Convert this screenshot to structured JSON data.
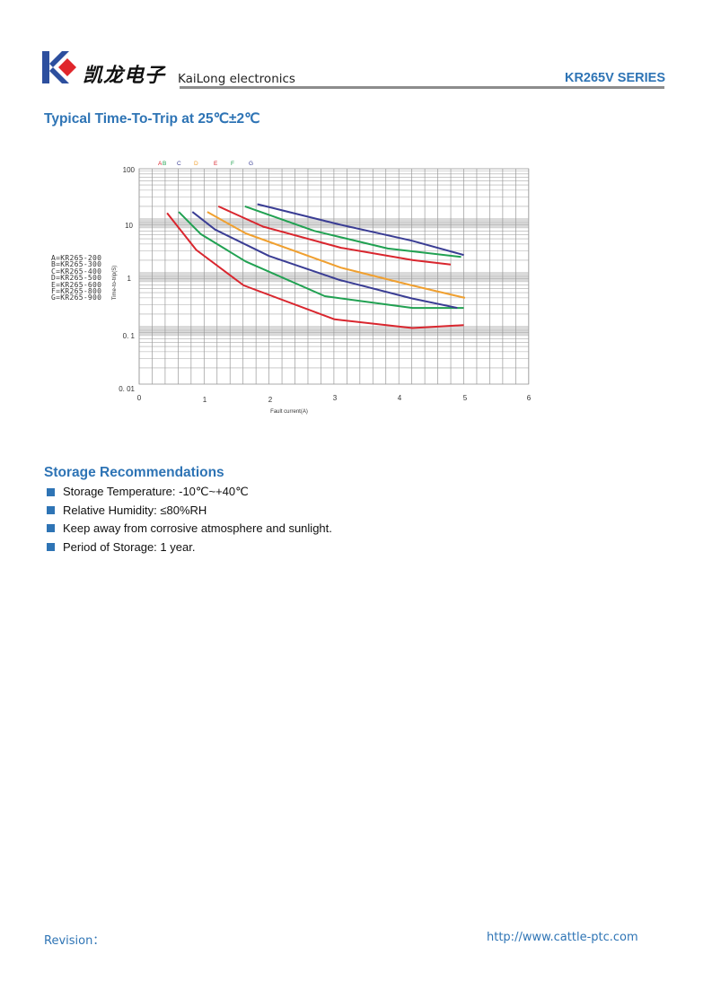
{
  "header": {
    "logo_text_cn": "凯龙电子",
    "brand": "KaiLong electronics",
    "series": "KR265V SERIES"
  },
  "section1": {
    "title": "Typical Time-To-Trip at 25℃±2℃"
  },
  "chart_data": {
    "type": "line",
    "title": "",
    "xlabel": "Fault current(A)",
    "ylabel": "Time-to-trip(S)",
    "xlim": [
      0,
      6
    ],
    "ylim": [
      0.01,
      100
    ],
    "yscale": "log",
    "grid": true,
    "x_ticks": [
      "0",
      "1",
      "2",
      "3",
      "4",
      "5",
      "6"
    ],
    "y_ticks": [
      "100",
      "10",
      "1",
      "0. 1",
      "0. 01"
    ],
    "legend_placement": "left",
    "legend": [
      "A=KR265-200",
      "B=KR265-300",
      "C=KR265-400",
      "D=KR265-500",
      "E=KR265-600",
      "F=KR265-800",
      "G=KR265-900"
    ],
    "series": [
      {
        "name": "A",
        "color": "#d9262e",
        "x": [
          0.43,
          0.88,
          1.61,
          3.01,
          4.21,
          5.0
        ],
        "y": [
          15,
          3.1,
          0.68,
          0.16,
          0.11,
          0.125
        ]
      },
      {
        "name": "B",
        "color": "#21a152",
        "x": [
          0.61,
          0.95,
          1.64,
          2.86,
          4.21,
          5.0
        ],
        "y": [
          15.8,
          6.1,
          1.9,
          0.43,
          0.26,
          0.26
        ]
      },
      {
        "name": "C",
        "color": "#3a3d94",
        "x": [
          0.82,
          1.17,
          2.0,
          3.07,
          4.2,
          4.9
        ],
        "y": [
          15.8,
          7.4,
          2.4,
          0.87,
          0.39,
          0.26
        ]
      },
      {
        "name": "D",
        "color": "#f0a030",
        "x": [
          1.05,
          1.64,
          3.11,
          4.2,
          5.02
        ],
        "y": [
          15.8,
          6.3,
          1.45,
          0.68,
          0.4
        ]
      },
      {
        "name": "E",
        "color": "#d9262e",
        "x": [
          1.22,
          1.91,
          3.11,
          4.22,
          4.8
        ],
        "y": [
          20,
          8.4,
          3.4,
          2.0,
          1.66
        ]
      },
      {
        "name": "F",
        "color": "#21a152",
        "x": [
          1.63,
          2.7,
          3.83,
          4.96
        ],
        "y": [
          20,
          7.0,
          3.3,
          2.3
        ]
      },
      {
        "name": "G",
        "color": "#3a3d94",
        "x": [
          1.82,
          3.07,
          4.2,
          5.0
        ],
        "y": [
          22,
          9.3,
          4.6,
          2.5
        ]
      }
    ],
    "series_letters": [
      {
        "text": "A",
        "color": "#d9262e"
      },
      {
        "text": "B",
        "color": "#21a152"
      },
      {
        "text": "C",
        "color": "#3a3d94"
      },
      {
        "text": "D",
        "color": "#f0a030"
      },
      {
        "text": "E",
        "color": "#d9262e"
      },
      {
        "text": "F",
        "color": "#21a152"
      },
      {
        "text": "G",
        "color": "#3a3d94"
      }
    ]
  },
  "section2": {
    "title": "Storage Recommendations",
    "items": [
      "Storage Temperature: -10℃~+40℃",
      "Relative Humidity: ≤80%RH",
      "Keep away from corrosive atmosphere and sunlight.",
      "Period of Storage: 1 year."
    ]
  },
  "footer": {
    "revision": "Revision：",
    "url": "http://www.cattle-ptc.com"
  },
  "colors": {
    "accent": "#2e74b5",
    "logo_blue": "#2d4f9e",
    "logo_red": "#e0262b"
  }
}
